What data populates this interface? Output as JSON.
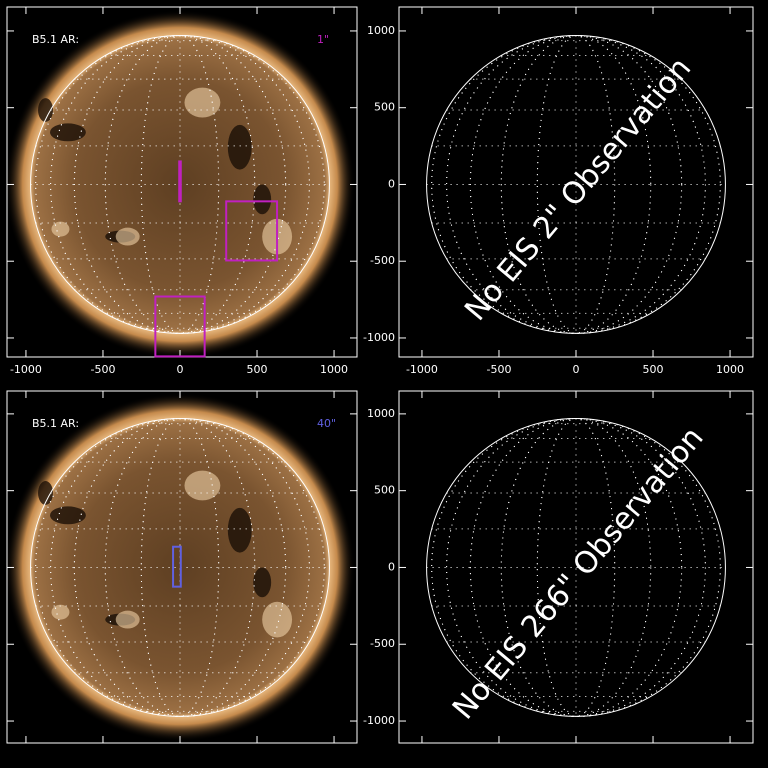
{
  "chart_data": [
    {
      "type": "image",
      "label": "B5.1 AR:",
      "annotation": "1\"",
      "annotation_color": "#c020c0",
      "sun": true,
      "xlim": [
        -1123,
        1149
      ],
      "ylim": [
        -1124,
        1156
      ],
      "xticks": [
        -1000,
        -500,
        0,
        500,
        1000
      ],
      "yticks": [
        -1000,
        -500,
        0,
        500,
        1000
      ],
      "xtick_labels": true,
      "ytick_labels": false,
      "boxes": [
        {
          "x0": -5,
          "x1": 5,
          "y0": -110,
          "y1": 150,
          "color": "#c020c0"
        },
        {
          "x0": 300,
          "x1": 630,
          "y0": -495,
          "y1": -110,
          "color": "#c020c0"
        },
        {
          "x0": -160,
          "x1": 160,
          "y0": -1120,
          "y1": -730,
          "color": "#c020c0"
        }
      ]
    },
    {
      "type": "image",
      "message": "No EIS 2\" Observation",
      "sun": false,
      "xlim": [
        -1149,
        1149
      ],
      "ylim": [
        -1124,
        1156
      ],
      "xticks": [
        -1000,
        -500,
        0,
        500,
        1000
      ],
      "yticks": [
        -1000,
        -500,
        0,
        500,
        1000
      ],
      "xtick_labels": true,
      "ytick_labels": true
    },
    {
      "type": "image",
      "label": "B5.1 AR:",
      "annotation": "40\"",
      "annotation_color": "#6060e0",
      "sun": true,
      "xlim": [
        -1123,
        1149
      ],
      "ylim": [
        -1143,
        1149
      ],
      "xticks": [
        -1000,
        -500,
        0,
        500,
        1000
      ],
      "yticks": [
        -1000,
        -500,
        0,
        500,
        1000
      ],
      "xtick_labels": false,
      "ytick_labels": false,
      "boxes": [
        {
          "x0": -45,
          "x1": 5,
          "y0": -125,
          "y1": 135,
          "color": "#6060e0"
        }
      ]
    },
    {
      "type": "image",
      "message": "No EIS 266\" Observation",
      "sun": false,
      "xlim": [
        -1149,
        1149
      ],
      "ylim": [
        -1143,
        1149
      ],
      "xticks": [
        -1000,
        -500,
        0,
        500,
        1000
      ],
      "yticks": [
        -1000,
        -500,
        0,
        500,
        1000
      ],
      "xtick_labels": false,
      "ytick_labels": true
    }
  ]
}
